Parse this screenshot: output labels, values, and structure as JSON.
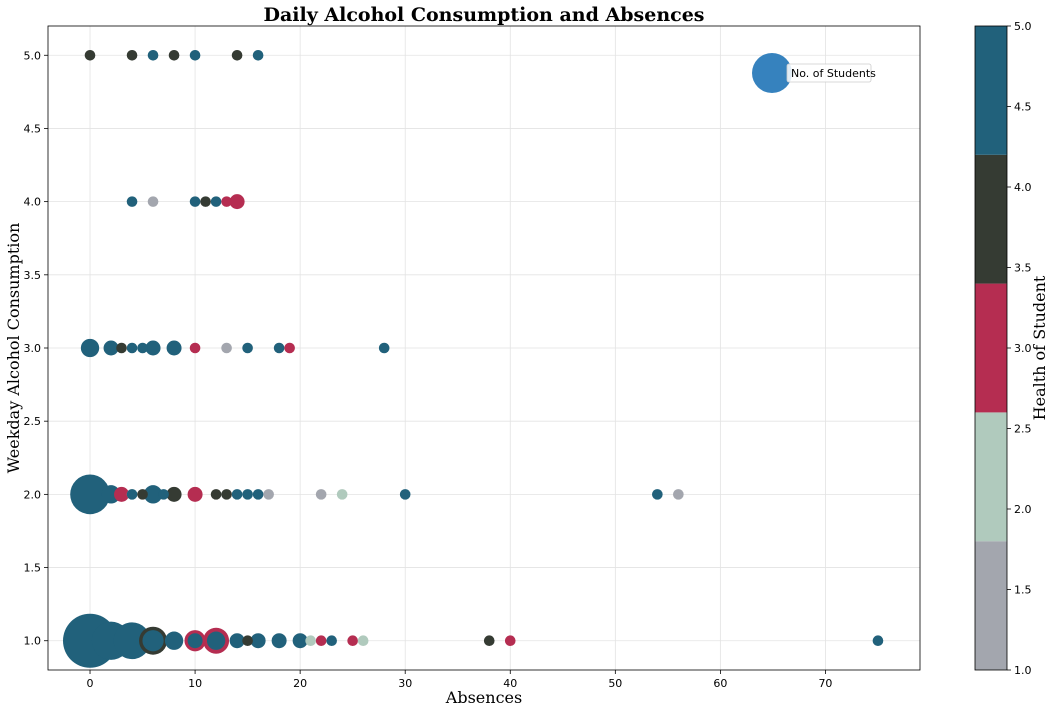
{
  "chart_data": {
    "type": "scatter",
    "title": "Daily Alcohol Consumption and Absences",
    "xlabel": "Absences",
    "ylabel": "Weekday Alcohol Consumption",
    "xlim": [
      -4,
      79
    ],
    "ylim": [
      0.8,
      5.2
    ],
    "xticks": [
      0,
      10,
      20,
      30,
      40,
      50,
      60,
      70
    ],
    "yticks": [
      1.0,
      1.5,
      2.0,
      2.5,
      3.0,
      3.5,
      4.0,
      4.5,
      5.0
    ],
    "grid": true,
    "size_encoding": "No. of Students",
    "color_encoding": "Health of Student",
    "legend": {
      "label": "No. of Students",
      "placement": "top-right"
    },
    "colorbar": {
      "label": "Health of Student",
      "range": [
        1.0,
        5.0
      ],
      "ticks": [
        1.0,
        1.5,
        2.0,
        2.5,
        3.0,
        3.5,
        4.0,
        4.5,
        5.0
      ],
      "colors": [
        "#a3a6ae",
        "#b0cabd",
        "#b52d51",
        "#353b33",
        "#21617b"
      ]
    },
    "points": [
      {
        "x": 0,
        "y": 5.0,
        "health": 4
      },
      {
        "x": 4,
        "y": 5.0,
        "health": 4
      },
      {
        "x": 6,
        "y": 5.0,
        "health": 5
      },
      {
        "x": 8,
        "y": 5.0,
        "health": 4
      },
      {
        "x": 10,
        "y": 5.0,
        "health": 5
      },
      {
        "x": 14,
        "y": 5.0,
        "health": 4
      },
      {
        "x": 16,
        "y": 5.0,
        "health": 5
      },
      {
        "x": 4,
        "y": 4.0,
        "health": 5
      },
      {
        "x": 6,
        "y": 4.0,
        "health": 1
      },
      {
        "x": 10,
        "y": 4.0,
        "health": 5
      },
      {
        "x": 11,
        "y": 4.0,
        "health": 4
      },
      {
        "x": 12,
        "y": 4.0,
        "health": 5
      },
      {
        "x": 13,
        "y": 4.0,
        "health": 3
      },
      {
        "x": 14,
        "y": 4.0,
        "health": 3,
        "count": 2
      },
      {
        "x": 0,
        "y": 3.0,
        "health": 5,
        "count": 3
      },
      {
        "x": 2,
        "y": 3.0,
        "health": 5,
        "count": 2
      },
      {
        "x": 3,
        "y": 3.0,
        "health": 4
      },
      {
        "x": 4,
        "y": 3.0,
        "health": 5
      },
      {
        "x": 5,
        "y": 3.0,
        "health": 5
      },
      {
        "x": 6,
        "y": 3.0,
        "health": 5,
        "count": 2
      },
      {
        "x": 8,
        "y": 3.0,
        "health": 5,
        "count": 2
      },
      {
        "x": 10,
        "y": 3.0,
        "health": 3
      },
      {
        "x": 13,
        "y": 3.0,
        "health": 1
      },
      {
        "x": 15,
        "y": 3.0,
        "health": 5
      },
      {
        "x": 18,
        "y": 3.0,
        "health": 5
      },
      {
        "x": 19,
        "y": 3.0,
        "health": 3
      },
      {
        "x": 28,
        "y": 3.0,
        "health": 5
      },
      {
        "x": 0,
        "y": 2.0,
        "health": 5,
        "count": 14
      },
      {
        "x": 2,
        "y": 2.0,
        "health": 5,
        "count": 3
      },
      {
        "x": 3,
        "y": 2.0,
        "health": 3,
        "count": 2
      },
      {
        "x": 4,
        "y": 2.0,
        "health": 2
      },
      {
        "x": 4,
        "y": 2.0,
        "health": 5
      },
      {
        "x": 5,
        "y": 2.0,
        "health": 4
      },
      {
        "x": 6,
        "y": 2.0,
        "health": 5,
        "count": 3
      },
      {
        "x": 7,
        "y": 2.0,
        "health": 5
      },
      {
        "x": 8,
        "y": 2.0,
        "health": 4,
        "count": 2
      },
      {
        "x": 10,
        "y": 2.0,
        "health": 3,
        "count": 2
      },
      {
        "x": 12,
        "y": 2.0,
        "health": 4
      },
      {
        "x": 13,
        "y": 2.0,
        "health": 4
      },
      {
        "x": 14,
        "y": 2.0,
        "health": 5
      },
      {
        "x": 15,
        "y": 2.0,
        "health": 5
      },
      {
        "x": 16,
        "y": 2.0,
        "health": 5
      },
      {
        "x": 17,
        "y": 2.0,
        "health": 1
      },
      {
        "x": 22,
        "y": 2.0,
        "health": 1
      },
      {
        "x": 24,
        "y": 2.0,
        "health": 2
      },
      {
        "x": 30,
        "y": 2.0,
        "health": 5
      },
      {
        "x": 54,
        "y": 2.0,
        "health": 5
      },
      {
        "x": 56,
        "y": 2.0,
        "health": 1
      },
      {
        "x": 0,
        "y": 1.0,
        "health": 5,
        "count": 26
      },
      {
        "x": 2,
        "y": 1.0,
        "health": 5,
        "count": 13
      },
      {
        "x": 4,
        "y": 1.0,
        "health": 5,
        "count": 12
      },
      {
        "x": 6,
        "y": 1.0,
        "health": 4,
        "count": 7
      },
      {
        "x": 6,
        "y": 1.0,
        "health": 5,
        "count": 4
      },
      {
        "x": 8,
        "y": 1.0,
        "health": 5,
        "count": 3
      },
      {
        "x": 10,
        "y": 1.0,
        "health": 3,
        "count": 4
      },
      {
        "x": 10,
        "y": 1.0,
        "health": 5,
        "count": 2
      },
      {
        "x": 12,
        "y": 1.0,
        "health": 3,
        "count": 6
      },
      {
        "x": 12,
        "y": 1.0,
        "health": 5,
        "count": 3
      },
      {
        "x": 14,
        "y": 1.0,
        "health": 5,
        "count": 2
      },
      {
        "x": 15,
        "y": 1.0,
        "health": 4
      },
      {
        "x": 16,
        "y": 1.0,
        "health": 5,
        "count": 2
      },
      {
        "x": 18,
        "y": 1.0,
        "health": 5,
        "count": 2
      },
      {
        "x": 20,
        "y": 1.0,
        "health": 5,
        "count": 2
      },
      {
        "x": 21,
        "y": 1.0,
        "health": 2
      },
      {
        "x": 22,
        "y": 1.0,
        "health": 3
      },
      {
        "x": 23,
        "y": 1.0,
        "health": 5
      },
      {
        "x": 25,
        "y": 1.0,
        "health": 3
      },
      {
        "x": 26,
        "y": 1.0,
        "health": 2
      },
      {
        "x": 38,
        "y": 1.0,
        "health": 4
      },
      {
        "x": 40,
        "y": 1.0,
        "health": 3
      },
      {
        "x": 75,
        "y": 1.0,
        "health": 5
      }
    ]
  }
}
